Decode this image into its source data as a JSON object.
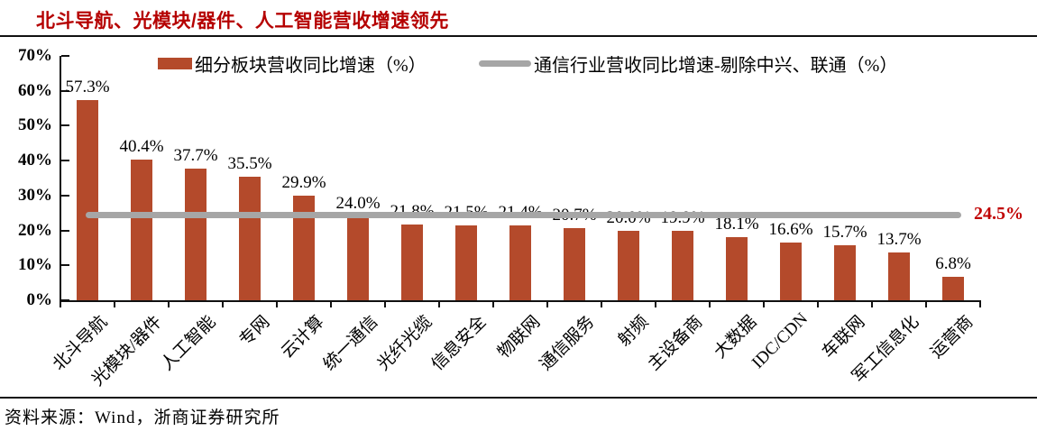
{
  "title": {
    "text": "北斗导航、光模块/器件、人工智能营收增速领先",
    "color": "#B50000"
  },
  "legend": {
    "bar_series_label": "细分板块营收同比增速（%）",
    "line_series_label": "通信行业营收同比增速-剔除中兴、联通（%）"
  },
  "chart_data": {
    "type": "bar",
    "title": "北斗导航、光模块/器件、人工智能营收增速领先",
    "categories": [
      "北斗导航",
      "光模块/器件",
      "人工智能",
      "专网",
      "云计算",
      "统一通信",
      "光纤光缆",
      "信息安全",
      "物联网",
      "通信服务",
      "射频",
      "主设备商",
      "大数据",
      "IDC/CDN",
      "车联网",
      "军工信息化",
      "运营商"
    ],
    "series": [
      {
        "name": "细分板块营收同比增速（%）",
        "type": "bar",
        "color": "#B44A2B",
        "values": [
          57.3,
          40.4,
          37.7,
          35.5,
          29.9,
          24.0,
          21.8,
          21.5,
          21.4,
          20.7,
          20.0,
          19.9,
          18.1,
          16.6,
          15.7,
          13.7,
          6.8
        ]
      },
      {
        "name": "通信行业营收同比增速-剔除中兴、联通（%）",
        "type": "line",
        "color": "#A6A6A6",
        "value": 24.5,
        "display_label": "24.5%",
        "label_color": "#C00000"
      }
    ],
    "xlabel": "",
    "ylabel": "",
    "ylim": [
      0,
      70
    ],
    "ytick_step": 10,
    "ytick_labels": [
      "0%",
      "10%",
      "20%",
      "30%",
      "40%",
      "50%",
      "60%",
      "70%"
    ],
    "grid": false,
    "legend_position": "top"
  },
  "footer": {
    "source": "资料来源：Wind，浙商证券研究所"
  }
}
